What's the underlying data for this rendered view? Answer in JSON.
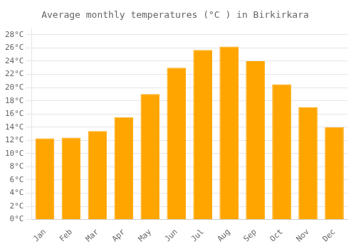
{
  "chart_data": {
    "type": "bar",
    "title": "Average monthly temperatures (°C ) in Birkirkara",
    "categories": [
      "Jan",
      "Feb",
      "Mar",
      "Apr",
      "May",
      "Jun",
      "Jul",
      "Aug",
      "Sep",
      "Oct",
      "Nov",
      "Dec"
    ],
    "values": [
      12.3,
      12.4,
      13.4,
      15.5,
      19.0,
      23.0,
      25.7,
      26.2,
      24.0,
      20.5,
      17.0,
      14.0
    ],
    "color": "#FFA500",
    "ylim": [
      0,
      29
    ],
    "yticks": [
      {
        "value": 0,
        "label": "0°C"
      },
      {
        "value": 2,
        "label": "2°C"
      },
      {
        "value": 4,
        "label": "4°C"
      },
      {
        "value": 6,
        "label": "6°C"
      },
      {
        "value": 8,
        "label": "8°C"
      },
      {
        "value": 10,
        "label": "10°C"
      },
      {
        "value": 12,
        "label": "12°C"
      },
      {
        "value": 14,
        "label": "14°C"
      },
      {
        "value": 16,
        "label": "16°C"
      },
      {
        "value": 18,
        "label": "18°C"
      },
      {
        "value": 20,
        "label": "20°C"
      },
      {
        "value": 22,
        "label": "22°C"
      },
      {
        "value": 24,
        "label": "24°C"
      },
      {
        "value": 26,
        "label": "26°C"
      },
      {
        "value": 28,
        "label": "28°C"
      }
    ],
    "grid": true
  }
}
